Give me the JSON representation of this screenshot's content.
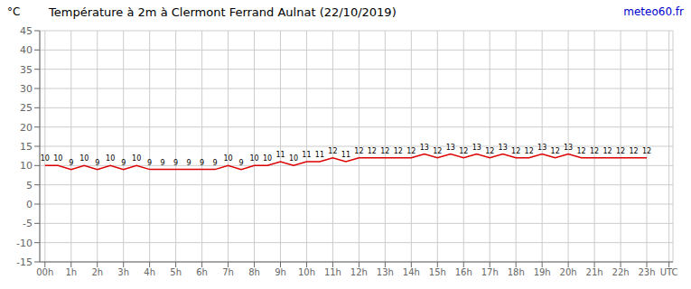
{
  "chart_data": {
    "type": "line",
    "title": "Température à 2m à Clermont Ferrand Aulnat (22/10/2019)",
    "y_label": "°C",
    "annotations": [
      {
        "text": "meteo60.fr",
        "color": "#0000cc"
      }
    ],
    "x": [
      0,
      0.5,
      1,
      1.5,
      2,
      2.5,
      3,
      3.5,
      4,
      4.5,
      5,
      5.5,
      6,
      6.5,
      7,
      7.5,
      8,
      8.5,
      9,
      9.5,
      10,
      10.5,
      11,
      11.5,
      12,
      12.5,
      13,
      13.5,
      14,
      14.5,
      15,
      15.5,
      16,
      16.5,
      17,
      17.5,
      18,
      18.5,
      19,
      19.5,
      20,
      20.5,
      21,
      21.5,
      22,
      22.5,
      23
    ],
    "values": [
      10,
      10,
      9,
      10,
      9,
      10,
      9,
      10,
      9,
      9,
      9,
      9,
      9,
      9,
      10,
      9,
      10,
      10,
      11,
      10,
      11,
      11,
      12,
      11,
      12,
      12,
      12,
      12,
      12,
      13,
      12,
      13,
      12,
      13,
      12,
      13,
      12,
      12,
      13,
      12,
      13,
      12,
      12,
      12,
      12,
      12,
      12
    ],
    "color": "#dd0000",
    "xlim": [
      -0.2,
      24.0
    ],
    "xticks": [
      {
        "value": 0,
        "label": "00h"
      },
      {
        "value": 1,
        "label": "1h"
      },
      {
        "value": 2,
        "label": "2h"
      },
      {
        "value": 3,
        "label": "3h"
      },
      {
        "value": 4,
        "label": "4h"
      },
      {
        "value": 5,
        "label": "5h"
      },
      {
        "value": 6,
        "label": "6h"
      },
      {
        "value": 7,
        "label": "7h"
      },
      {
        "value": 8,
        "label": "8h"
      },
      {
        "value": 9,
        "label": "9h"
      },
      {
        "value": 10,
        "label": "10h"
      },
      {
        "value": 11,
        "label": "11h"
      },
      {
        "value": 12,
        "label": "12h"
      },
      {
        "value": 13,
        "label": "13h"
      },
      {
        "value": 14,
        "label": "14h"
      },
      {
        "value": 15,
        "label": "15h"
      },
      {
        "value": 16,
        "label": "16h"
      },
      {
        "value": 17,
        "label": "17h"
      },
      {
        "value": 18,
        "label": "18h"
      },
      {
        "value": 19,
        "label": "19h"
      },
      {
        "value": 20,
        "label": "20h"
      },
      {
        "value": 21,
        "label": "21h"
      },
      {
        "value": 22,
        "label": "22h"
      },
      {
        "value": 23,
        "label": "23h"
      },
      {
        "value": 23.85,
        "label": "UTC"
      }
    ],
    "ylim": [
      -15,
      45
    ],
    "yticks": [
      -15,
      -10,
      -5,
      0,
      5,
      10,
      15,
      20,
      25,
      30,
      35,
      40,
      45
    ],
    "grid": true,
    "data_labels": true
  }
}
